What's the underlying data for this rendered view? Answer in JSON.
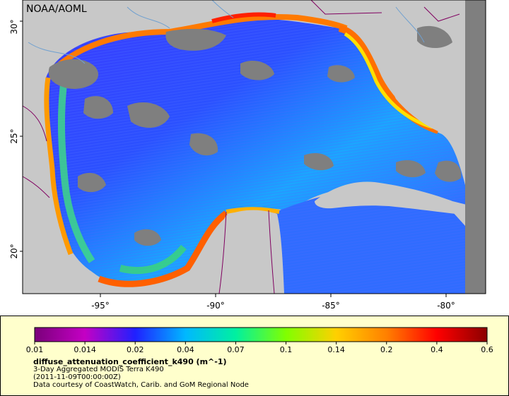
{
  "map": {
    "watermark": "NOAA/AOML",
    "lat_ticks": [
      "30°",
      "25°",
      "20°"
    ],
    "lon_ticks": [
      "-95°",
      "-90°",
      "-85°",
      "-80°"
    ],
    "colors": {
      "land": "#c8c8c8",
      "cloud": "#7f7f7f",
      "border": "#800060",
      "river": "#6fa0d0"
    }
  },
  "legend": {
    "tick_labels": [
      "0.01",
      "0.014",
      "0.02",
      "0.04",
      "0.07",
      "0.1",
      "0.14",
      "0.2",
      "0.4",
      "0.6"
    ],
    "title": "diffuse_attenuation_coefficient_k490 (m^-1)",
    "line1": "3-Day Aggregated MODIS Terra K490",
    "line2": "(2011-11-09T00:00:00Z)",
    "line3": "Data courtesy of CoastWatch, Carib. and GoM Regional Node",
    "colors": [
      "#7a007a",
      "#c400c4",
      "#2020ff",
      "#00b8ff",
      "#00f0a0",
      "#80ff00",
      "#ffd000",
      "#ff8000",
      "#ff0000",
      "#8b0000"
    ]
  }
}
